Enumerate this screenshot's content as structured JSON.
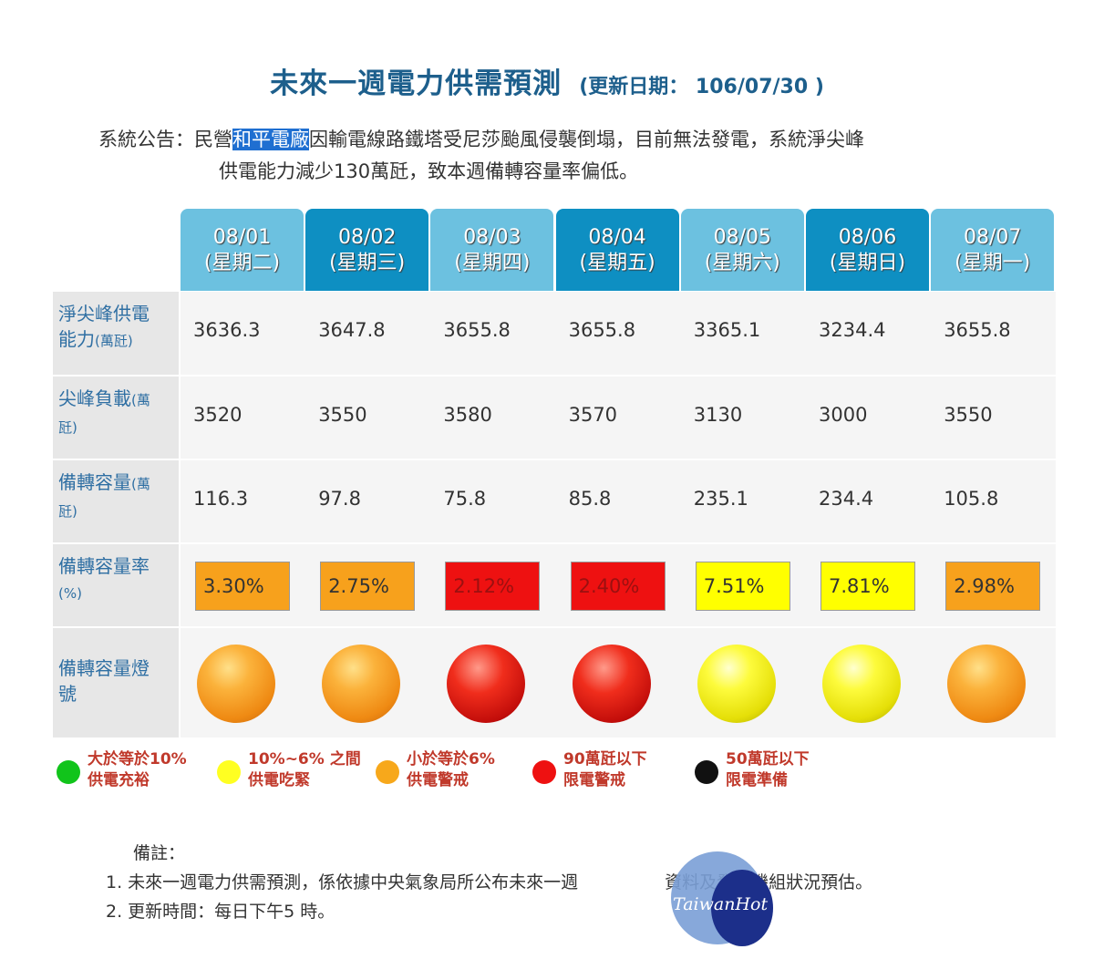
{
  "title": "未來一週電力供需預測",
  "update": "(更新日期： 106/07/30 )",
  "notice": {
    "prefix": "系統公告：民營",
    "highlight": "和平電廠",
    "rest1": "因輸電線路鐵塔受尼莎颱風侵襲倒塌，目前無法發電，系統淨尖峰",
    "rest2": "供電能力減少130萬瓩，致本週備轉容量率偏低。"
  },
  "days": [
    {
      "date": "08/01",
      "weekday": "(星期二)",
      "supply": "3636.3",
      "load": "3520",
      "reserve": "116.3",
      "rate": "3.30%",
      "color": "orange",
      "rate_bg": "#f7a11c"
    },
    {
      "date": "08/02",
      "weekday": "(星期三)",
      "supply": "3647.8",
      "load": "3550",
      "reserve": "97.8",
      "rate": "2.75%",
      "color": "orange",
      "rate_bg": "#f7a11c"
    },
    {
      "date": "08/03",
      "weekday": "(星期四)",
      "supply": "3655.8",
      "load": "3580",
      "reserve": "75.8",
      "rate": "2.12%",
      "color": "red",
      "rate_bg": "#ee1111"
    },
    {
      "date": "08/04",
      "weekday": "(星期五)",
      "supply": "3655.8",
      "load": "3570",
      "reserve": "85.8",
      "rate": "2.40%",
      "color": "red",
      "rate_bg": "#ee1111"
    },
    {
      "date": "08/05",
      "weekday": "(星期六)",
      "supply": "3365.1",
      "load": "3130",
      "reserve": "235.1",
      "rate": "7.51%",
      "color": "yellow",
      "rate_bg": "#ffff00"
    },
    {
      "date": "08/06",
      "weekday": "(星期日)",
      "supply": "3234.4",
      "load": "3000",
      "reserve": "234.4",
      "rate": "7.81%",
      "color": "yellow",
      "rate_bg": "#ffff00"
    },
    {
      "date": "08/07",
      "weekday": "(星期一)",
      "supply": "3655.8",
      "load": "3550",
      "reserve": "105.8",
      "rate": "2.98%",
      "color": "orange",
      "rate_bg": "#f7a11c"
    }
  ],
  "rows": {
    "supply_label1": "淨尖峰供電",
    "supply_label2": "能力",
    "supply_unit": "(萬瓩)",
    "load_label1": "尖峰負載",
    "load_unit1": "(萬",
    "load_unit2": "瓩)",
    "reserve_label1": "備轉容量",
    "reserve_unit1": "(萬",
    "reserve_unit2": "瓩)",
    "rate_label1": "備轉容量率",
    "rate_unit": "(%)",
    "light_label1": "備轉容量燈",
    "light_label2": "號"
  },
  "legend": [
    {
      "line1": "大於等於10%",
      "line2": "供電充裕",
      "color": "#11c41b"
    },
    {
      "line1": "10%~6% 之間",
      "line2": "供電吃緊",
      "color": "#ffff22"
    },
    {
      "line1": "小於等於6%",
      "line2": "供電警戒",
      "color": "#f7a81b"
    },
    {
      "line1": "90萬瓩以下",
      "line2": "限電警戒",
      "color": "#ee1111"
    },
    {
      "line1": "50萬瓩以下",
      "line2": "限電準備",
      "color": "#111111"
    }
  ],
  "notes": {
    "head": "備註：",
    "n1": "1. 未來一週電力供需預測，係依據中央氣象局所公布未來一週",
    "n1_tail": "資料及發電機組狀況預估。",
    "n2": "2. 更新時間：每日下午5 時。"
  },
  "watermark": "TaiwanHot"
}
